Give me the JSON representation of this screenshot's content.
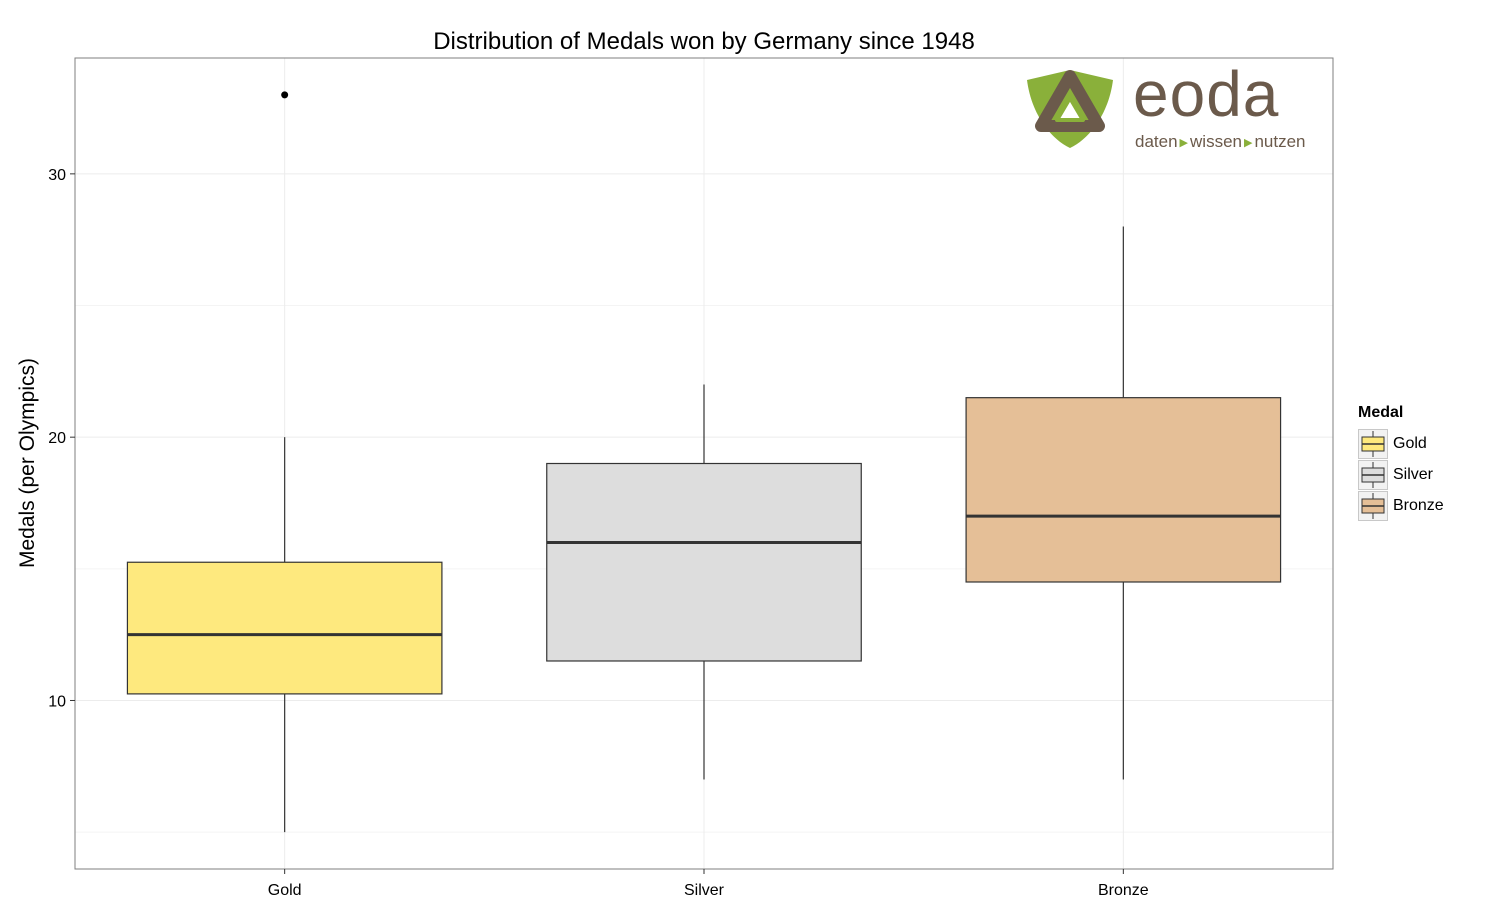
{
  "logo": {
    "word": "eoda",
    "tagline": [
      "daten",
      "wissen",
      "nutzen"
    ],
    "colors": {
      "brown": "#6b5a4b",
      "green": "#8ab03a"
    }
  },
  "chart_data": {
    "type": "boxplot",
    "title": "Distribution of Medals won by Germany since 1948",
    "xlabel": "",
    "ylabel": "Medals (per Olympics)",
    "categories": [
      "Gold",
      "Silver",
      "Bronze"
    ],
    "ylim": [
      3.6,
      34.4
    ],
    "y_ticks": [
      10,
      20,
      30
    ],
    "grid": true,
    "legend": {
      "title": "Medal",
      "position": "right",
      "items": [
        "Gold",
        "Silver",
        "Bronze"
      ]
    },
    "series": [
      {
        "name": "Gold",
        "color": "#fee97e",
        "min": 5,
        "q1": 10.25,
        "median": 12.5,
        "q3": 15.25,
        "max": 20,
        "outliers": [
          33
        ]
      },
      {
        "name": "Silver",
        "color": "#dddddd",
        "min": 7,
        "q1": 11.5,
        "median": 16,
        "q3": 19,
        "max": 22,
        "outliers": []
      },
      {
        "name": "Bronze",
        "color": "#e5bf97",
        "min": 7,
        "q1": 14.5,
        "median": 17,
        "q3": 21.5,
        "max": 28,
        "outliers": []
      }
    ]
  }
}
